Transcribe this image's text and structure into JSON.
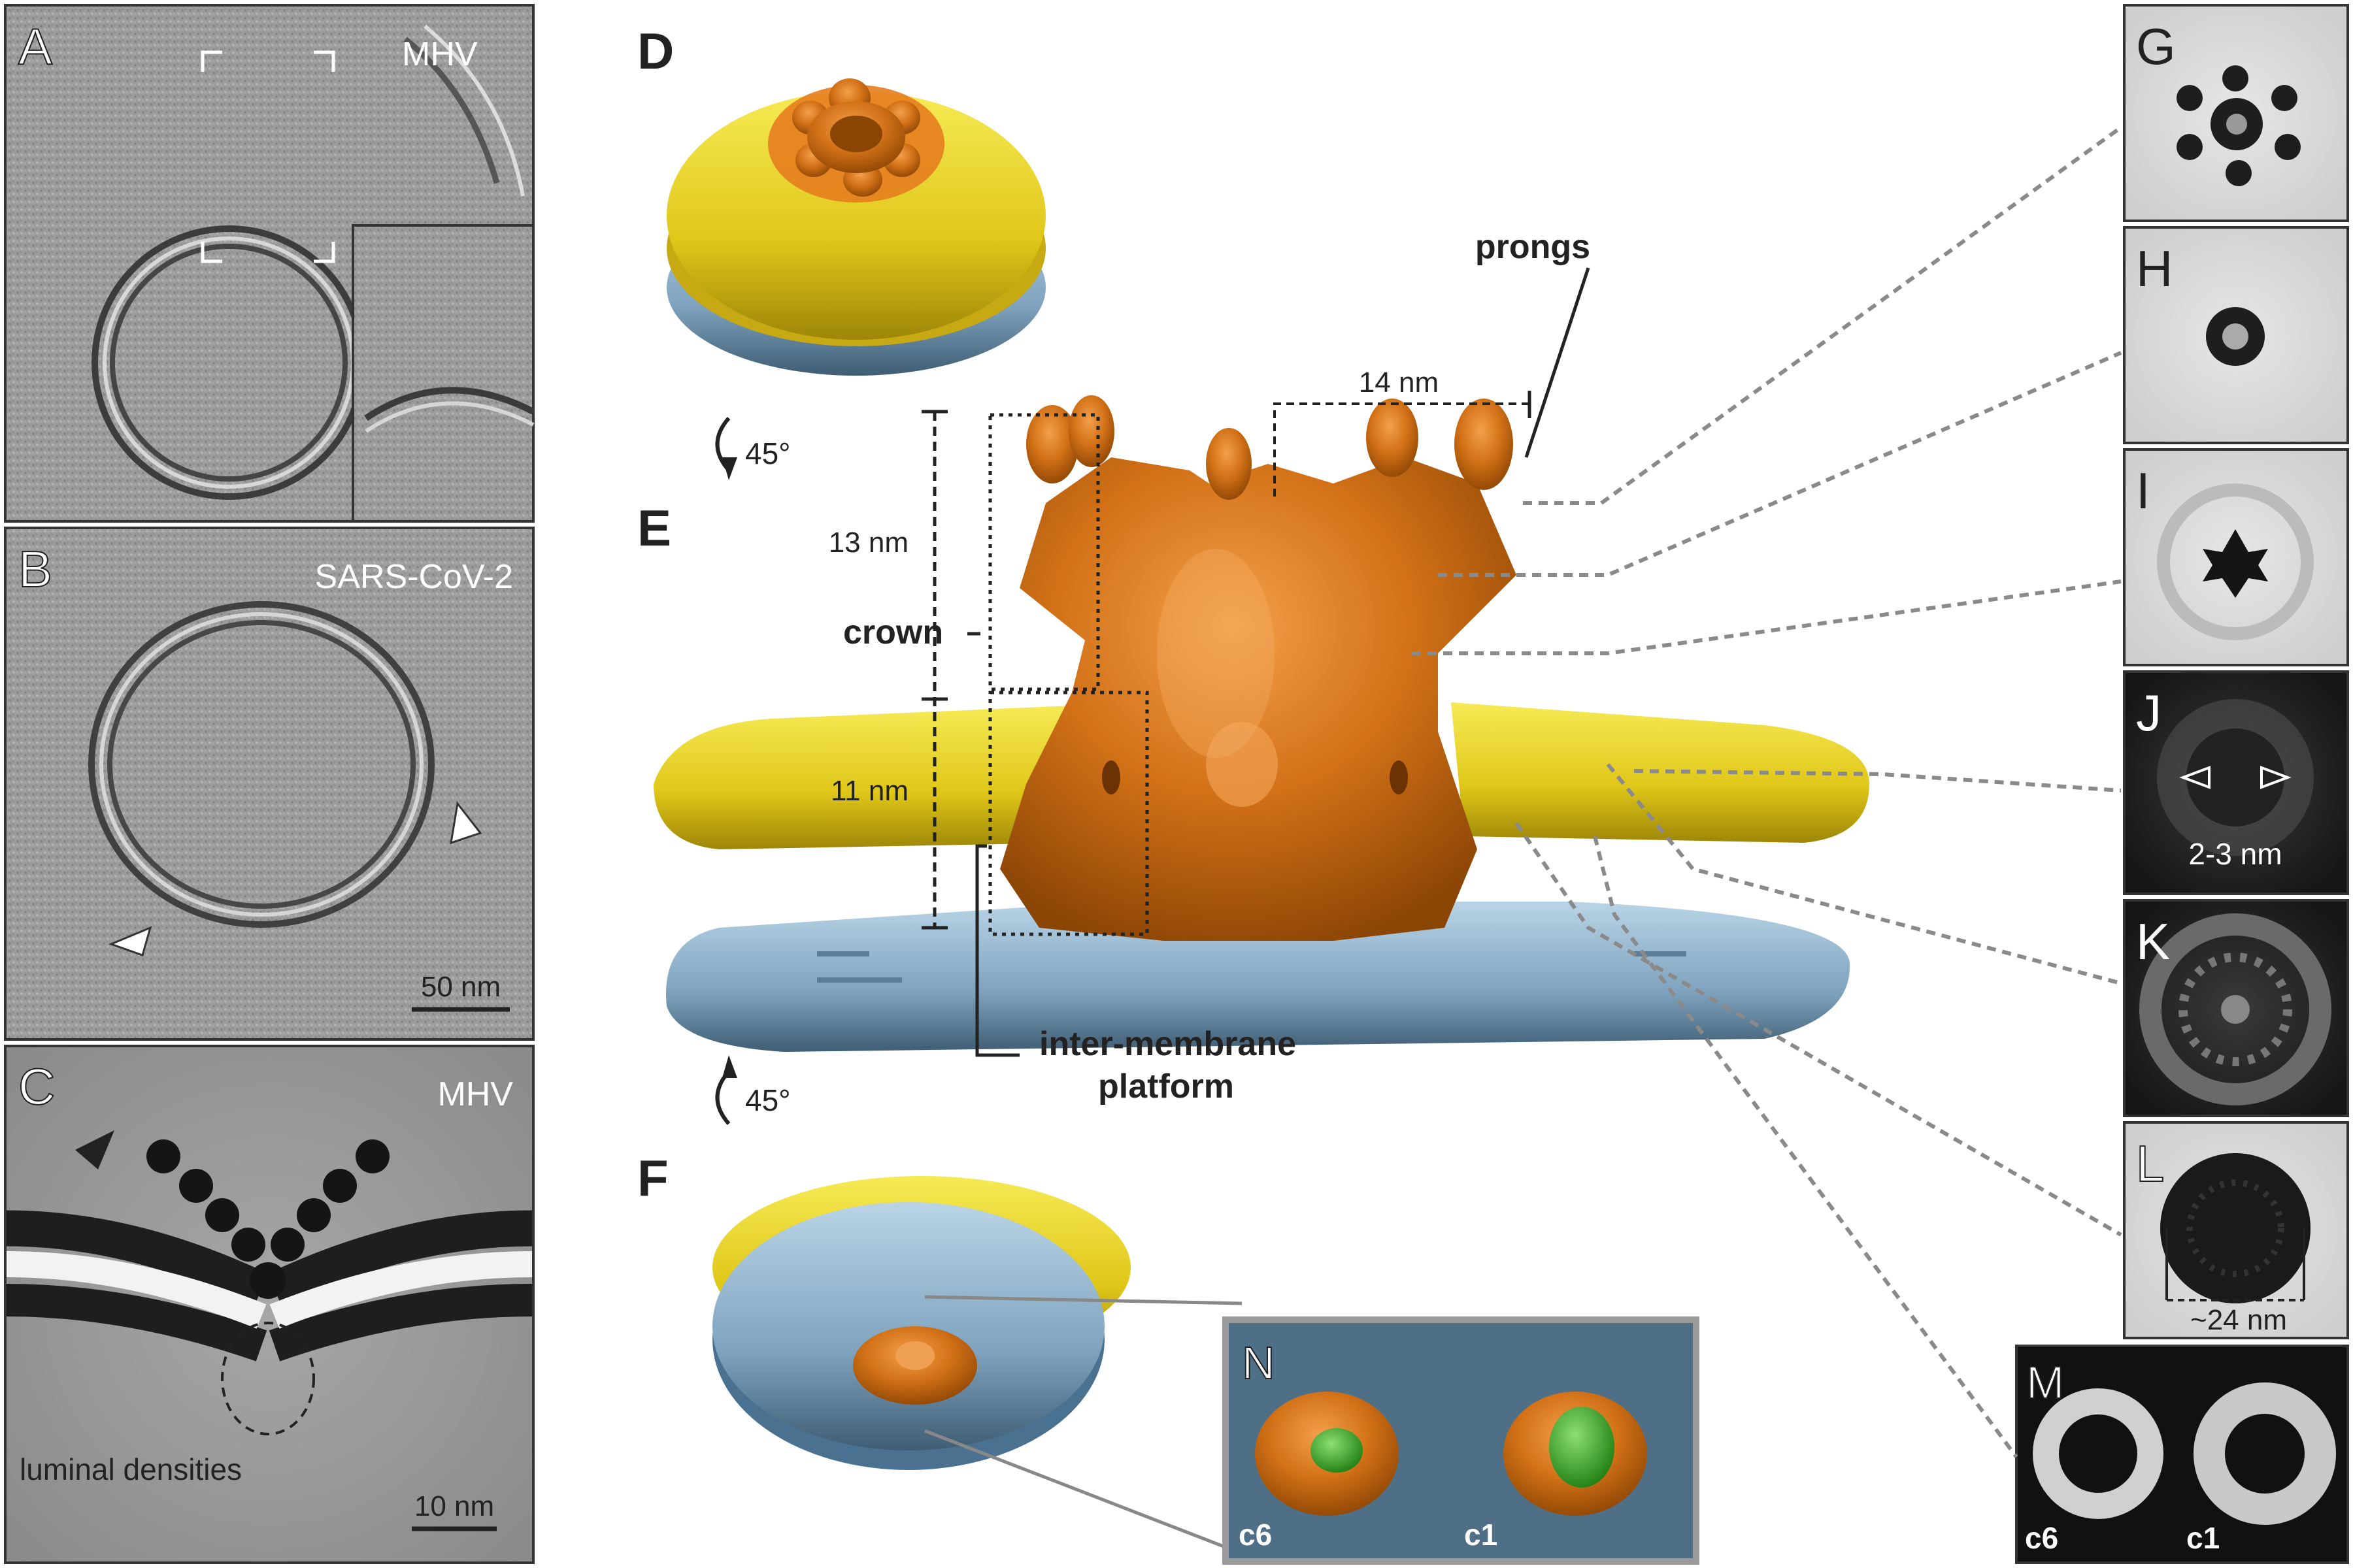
{
  "panels": {
    "A": {
      "letter": "A",
      "label": "MHV"
    },
    "B": {
      "letter": "B",
      "label": "SARS-CoV-2",
      "scale": "50 nm"
    },
    "C": {
      "letter": "C",
      "label": "MHV",
      "annotation": "luminal densities",
      "scale": "10 nm"
    },
    "D": {
      "letter": "D"
    },
    "E": {
      "letter": "E",
      "rotation_top": "45°",
      "dim_crown_height": "13 nm",
      "dim_platform_height": "11 nm",
      "dim_prong_width": "14 nm",
      "crown_label": "crown",
      "prongs_label": "prongs",
      "platform_label_1": "inter-membrane",
      "platform_label_2": "platform"
    },
    "F": {
      "letter": "F",
      "rotation": "45°"
    },
    "G": {
      "letter": "G"
    },
    "H": {
      "letter": "H"
    },
    "I": {
      "letter": "I"
    },
    "J": {
      "letter": "J",
      "gap_label": "2-3 nm"
    },
    "K": {
      "letter": "K"
    },
    "L": {
      "letter": "L",
      "diameter_label": "~24 nm"
    },
    "M": {
      "letter": "M",
      "sym_left": "c6",
      "sym_right": "c1"
    },
    "N": {
      "letter": "N",
      "sym_left": "c6",
      "sym_right": "c1"
    }
  },
  "colors": {
    "orange": "#c8660e",
    "yellow": "#e6d21a",
    "blue": "#7fa3bf",
    "green": "#3fae2a",
    "em_gray": "#9a9a9a"
  }
}
